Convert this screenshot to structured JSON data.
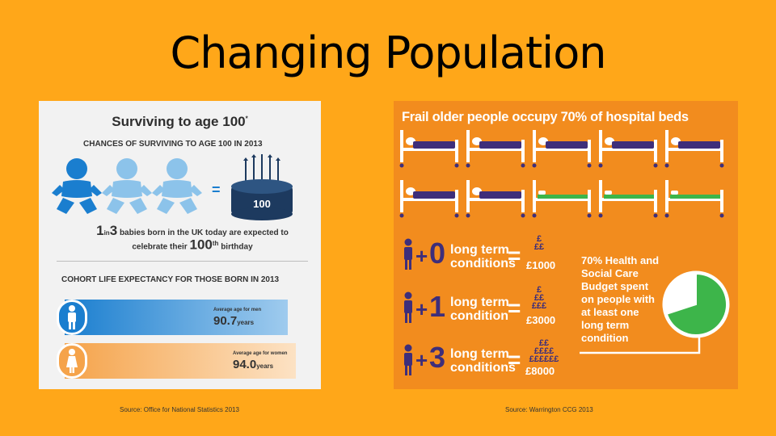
{
  "slide": {
    "title": "Changing Population",
    "source_left": "Source: Office for National Statistics 2013",
    "source_right": "Source: Warrington CCG 2013"
  },
  "left_infographic": {
    "heading": "Surviving to age 100",
    "heading_mark": "*",
    "subheading": "CHANCES OF SURVIVING TO AGE 100 IN 2013",
    "cake_label": "100",
    "equals": "=",
    "note": {
      "num1": "1",
      "in": "in",
      "num2": "3",
      "line1_rest": "babies born in the UK today are expected to",
      "line2": "celebrate their",
      "age": "100",
      "ordinal": "th",
      "birthday": "birthday"
    },
    "cohort_heading": "COHORT LIFE EXPECTANCY FOR THOSE BORN IN 2013",
    "men": {
      "label": "Average age for men",
      "value": "90.7",
      "unit": "years"
    },
    "women": {
      "label": "Average age for women",
      "value": "94.0",
      "unit": "years"
    },
    "colors": {
      "blue_dark": "#1A7ECF",
      "blue_light": "#8CC3EA",
      "orange": "#F5A34A",
      "cake": "#1D3A5F"
    }
  },
  "right_infographic": {
    "title": "Frail older people occupy 70% of hospital beds",
    "beds": {
      "total": 10,
      "occupied": 7
    },
    "rows": [
      {
        "plus": "+",
        "count": "0",
        "label_line1": "long term",
        "label_line2": "conditions",
        "equals": "=",
        "pounds": [
          "£",
          "££"
        ],
        "cost": "£1000"
      },
      {
        "plus": "+",
        "count": "1",
        "label_line1": "long term",
        "label_line2": "condition",
        "equals": "=",
        "pounds": [
          "£",
          "££",
          "£££"
        ],
        "cost": "£3000"
      },
      {
        "plus": "+",
        "count": "3",
        "label_line1": "long term",
        "label_line2": "conditions",
        "equals": "=",
        "pounds": [
          "££",
          "££££",
          "££££££"
        ],
        "cost": "£8000"
      }
    ],
    "budget_text": [
      "70% Health and",
      "Social Care",
      "Budget spent",
      "on people with",
      "at least one",
      "long term",
      "condition"
    ],
    "pie": {
      "share_percent": 70,
      "fill": "#3DB54A",
      "rest": "#FFFFFF"
    },
    "colors": {
      "bed_blanket": "#3E2E7A",
      "bed_empty": "#3DB54A",
      "person": "#3E2E7A"
    }
  }
}
